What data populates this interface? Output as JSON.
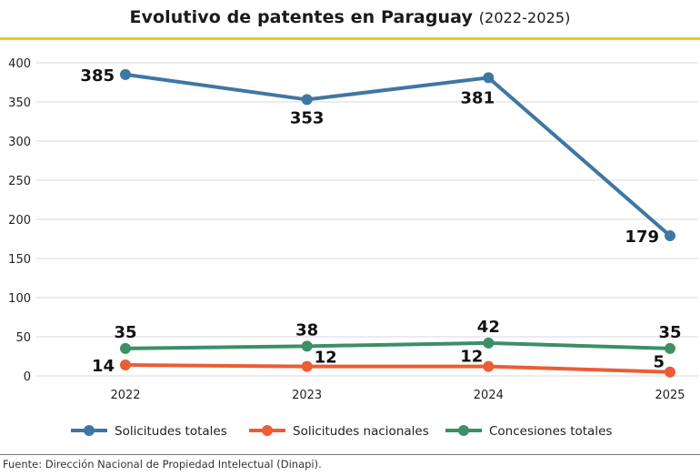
{
  "header": {
    "title_main": "Evolutivo de patentes en Paraguay",
    "title_sub": "(2022-2025)"
  },
  "footer": {
    "source": "Fuente: Dirección Nacional de Propiedad Intelectual (Dinapi)."
  },
  "chart_data": {
    "type": "line",
    "title": "Evolutivo de patentes en Paraguay (2022-2025)",
    "xlabel": "",
    "ylabel": "",
    "x": [
      "2022",
      "2023",
      "2024",
      "2025"
    ],
    "ylim": [
      0,
      400
    ],
    "yticks": [
      0,
      50,
      100,
      150,
      200,
      250,
      300,
      350,
      400
    ],
    "grid": true,
    "legend_position": "bottom",
    "series": [
      {
        "name": "Solicitudes totales",
        "color": "#3f77a3",
        "values": [
          385,
          353,
          381,
          179
        ],
        "label_pos": [
          "left",
          "below",
          "below-left",
          "left"
        ]
      },
      {
        "name": "Solicitudes nacionales",
        "color": "#ea5d36",
        "values": [
          14,
          12,
          12,
          5
        ],
        "label_pos": [
          "left",
          "above-right",
          "above-left",
          "above-left"
        ]
      },
      {
        "name": "Concesiones totales",
        "color": "#3c8f67",
        "values": [
          35,
          38,
          42,
          35
        ],
        "label_pos": [
          "above",
          "above",
          "above",
          "above"
        ]
      }
    ]
  }
}
